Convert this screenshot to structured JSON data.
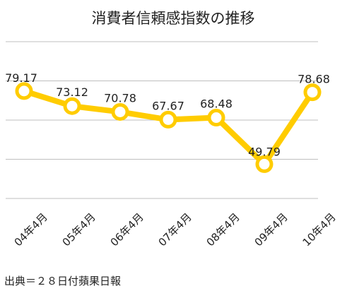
{
  "chart_data": {
    "type": "line",
    "title": "消費者信頼感指数の推移",
    "categories": [
      "04年4月",
      "05年4月",
      "06年4月",
      "07年4月",
      "08年4月",
      "09年4月",
      "10年4月"
    ],
    "series": [
      {
        "values": [
          79.17,
          73.12,
          70.78,
          67.67,
          68.48,
          49.79,
          78.68
        ],
        "labels": [
          "79.17",
          "73.12",
          "70.78",
          "67.67",
          "68.48",
          "49.79",
          "78.68"
        ],
        "color": "#FFCC00"
      }
    ],
    "ylim": [
      36,
      99
    ],
    "grid": true,
    "xlabel": "",
    "ylabel": ""
  },
  "source": "出典＝２８日付蘋果日報",
  "colors": {
    "line": "#FFCC00",
    "marker_fill": "#FFFFFF",
    "grid": "#BFBFBF",
    "text": "#222222"
  }
}
